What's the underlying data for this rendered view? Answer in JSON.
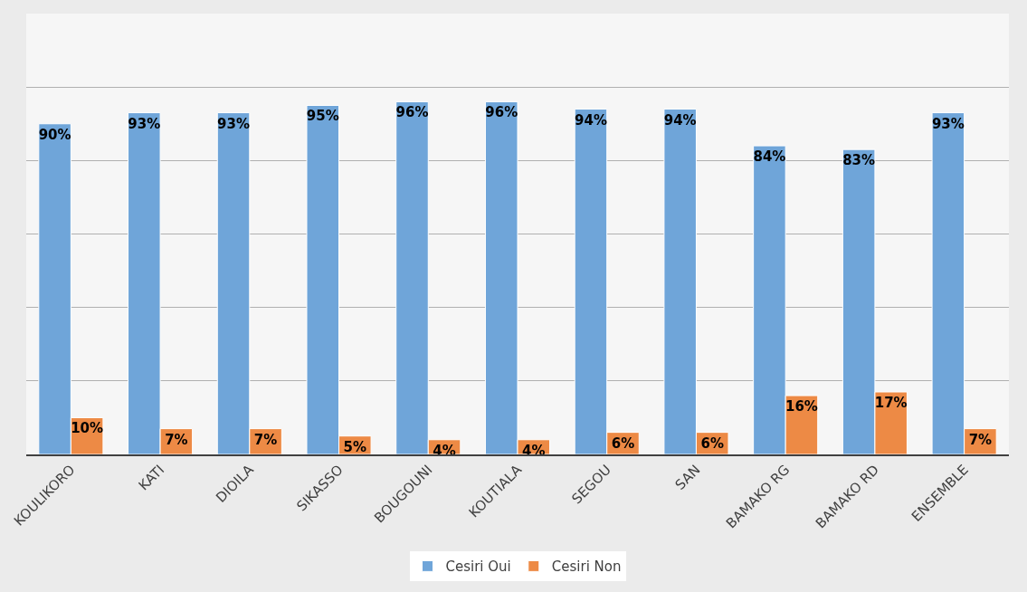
{
  "chart_data": {
    "type": "bar",
    "categories": [
      "KOULIKORO",
      "KATI",
      "DIOILA",
      "SIKASSO",
      "BOUGOUNI",
      "KOUTIALA",
      "SEGOU",
      "SAN",
      "BAMAKO RG",
      "BAMAKO RD",
      "ENSEMBLE"
    ],
    "series": [
      {
        "name": "Cesiri Oui",
        "color": "#6fa5d9",
        "values": [
          90,
          93,
          93,
          95,
          96,
          96,
          94,
          94,
          84,
          83,
          93
        ],
        "value_labels": [
          "90%",
          "93%",
          "93%",
          "95%",
          "96%",
          "96%",
          "94%",
          "94%",
          "84%",
          "83%",
          "93%"
        ]
      },
      {
        "name": "Cesiri Non",
        "color": "#ed8a45",
        "values": [
          10,
          7,
          7,
          5,
          4,
          4,
          6,
          6,
          16,
          17,
          7
        ],
        "value_labels": [
          "10%",
          "7%",
          "7%",
          "5%",
          "4%",
          "4%",
          "6%",
          "6%",
          "16%",
          "17%",
          "7%"
        ]
      }
    ],
    "ylim": [
      0,
      120
    ],
    "yticks": [
      {
        "value": 0,
        "label": null
      },
      {
        "value": 20,
        "label": null
      },
      {
        "value": 40,
        "label": null
      },
      {
        "value": 60,
        "label": null
      },
      {
        "value": 80,
        "label": null
      },
      {
        "value": 100,
        "label": null
      },
      {
        "value": 120,
        "label": null
      }
    ],
    "tick_labels": "x",
    "grid": "y",
    "legend": "bottom"
  }
}
